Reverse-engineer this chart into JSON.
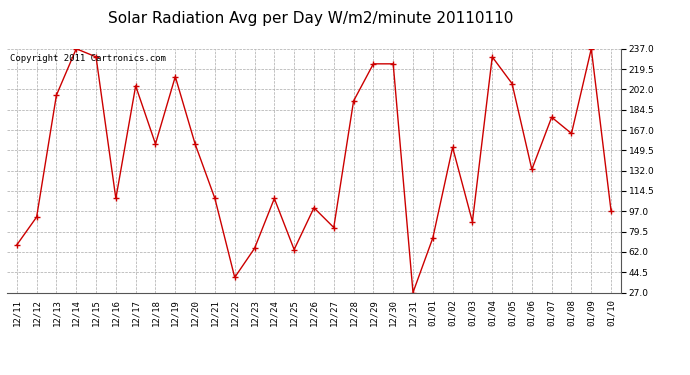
{
  "title": "Solar Radiation Avg per Day W/m2/minute 20110110",
  "copyright_text": "Copyright 2011 Cartronics.com",
  "labels": [
    "12/11",
    "12/12",
    "12/13",
    "12/14",
    "12/15",
    "12/16",
    "12/17",
    "12/18",
    "12/19",
    "12/20",
    "12/21",
    "12/22",
    "12/23",
    "12/24",
    "12/25",
    "12/26",
    "12/27",
    "12/28",
    "12/29",
    "12/30",
    "12/31",
    "01/01",
    "01/02",
    "01/03",
    "01/04",
    "01/05",
    "01/06",
    "01/07",
    "01/08",
    "01/09",
    "01/10"
  ],
  "values": [
    68,
    92,
    197,
    237,
    230,
    108,
    205,
    155,
    213,
    155,
    108,
    40,
    65,
    108,
    64,
    100,
    83,
    192,
    224,
    224,
    27,
    74,
    152,
    88,
    230,
    207,
    133,
    178,
    164,
    237,
    97
  ],
  "line_color": "#cc0000",
  "marker": "+",
  "marker_color": "#cc0000",
  "bg_color": "#ffffff",
  "plot_bg_color": "#ffffff",
  "grid_color": "#aaaaaa",
  "ylim_min": 27.0,
  "ylim_max": 237.0,
  "yticks": [
    27.0,
    44.5,
    62.0,
    79.5,
    97.0,
    114.5,
    132.0,
    149.5,
    167.0,
    184.5,
    202.0,
    219.5,
    237.0
  ],
  "title_fontsize": 11,
  "tick_fontsize": 6.5,
  "copyright_fontsize": 6.5
}
